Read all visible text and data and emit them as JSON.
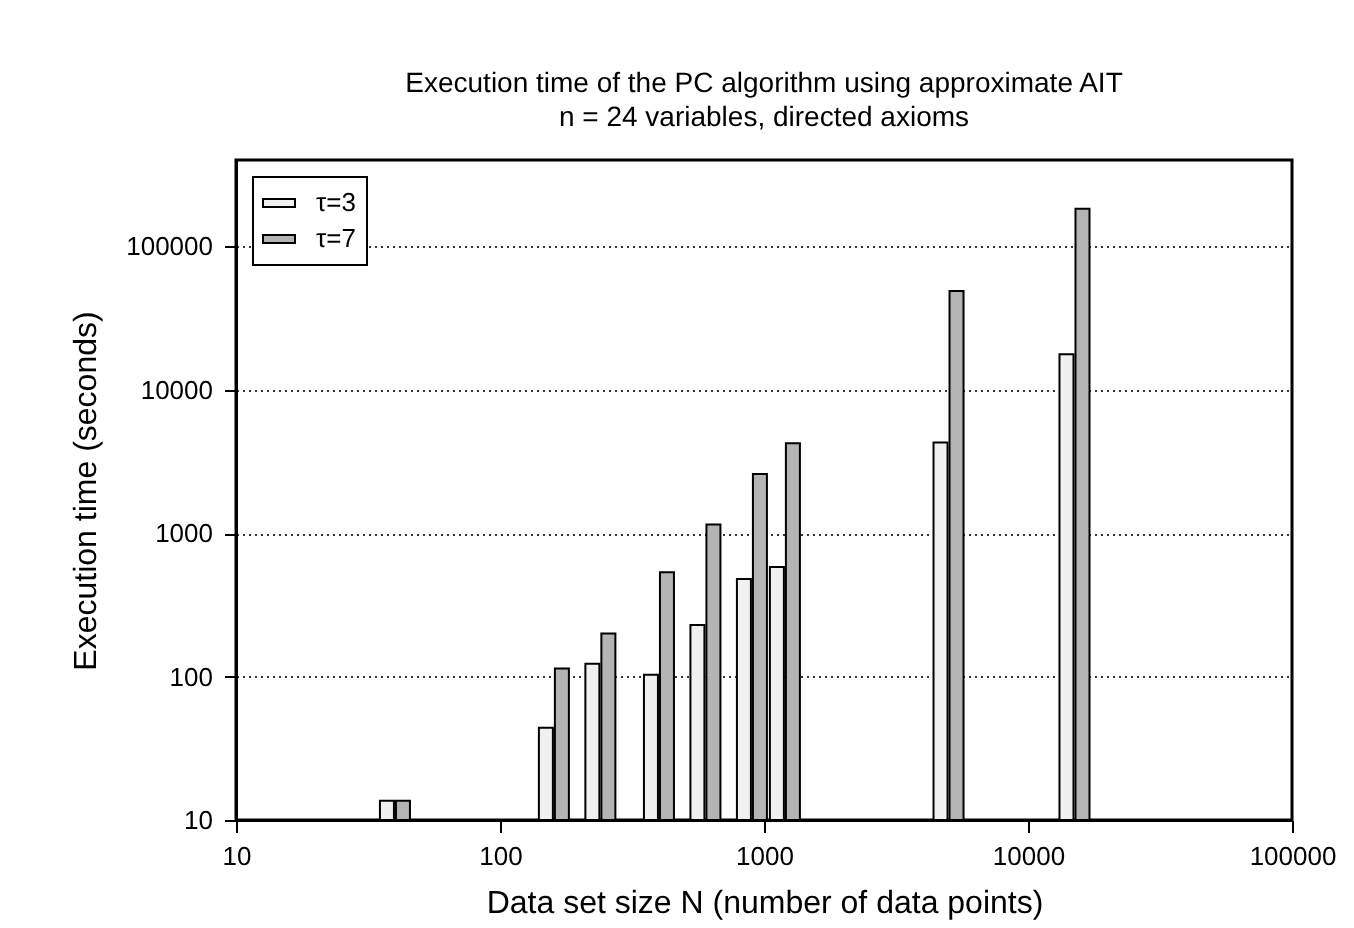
{
  "chart_data": {
    "type": "bar",
    "title": "Execution time of the PC algorithm using approximate AIT",
    "subtitle": "n = 24 variables, directed axioms",
    "xlabel": "Data set size N  (number of data points)",
    "ylabel": "Execution time (seconds)",
    "x": [
      40,
      160,
      240,
      400,
      600,
      900,
      1200,
      5000,
      15000
    ],
    "series": [
      {
        "name": "τ=3",
        "color": "#f0f0f0",
        "values": [
          13.6,
          44,
          123,
          103,
          229,
          479,
          581,
          4280,
          17700
        ]
      },
      {
        "name": "τ=7",
        "color": "#b4b4b4",
        "values": [
          13.6,
          114,
          200,
          535,
          1150,
          2590,
          4230,
          48900,
          183000
        ]
      }
    ],
    "log": "xy",
    "xlim": [
      10,
      100000
    ],
    "xticks": [
      10,
      100,
      1000,
      10000,
      100000
    ],
    "ylim": [
      10,
      400000
    ],
    "yticks": [
      10,
      100,
      1000,
      10000,
      100000
    ],
    "grid": "y",
    "legend": "top left"
  }
}
